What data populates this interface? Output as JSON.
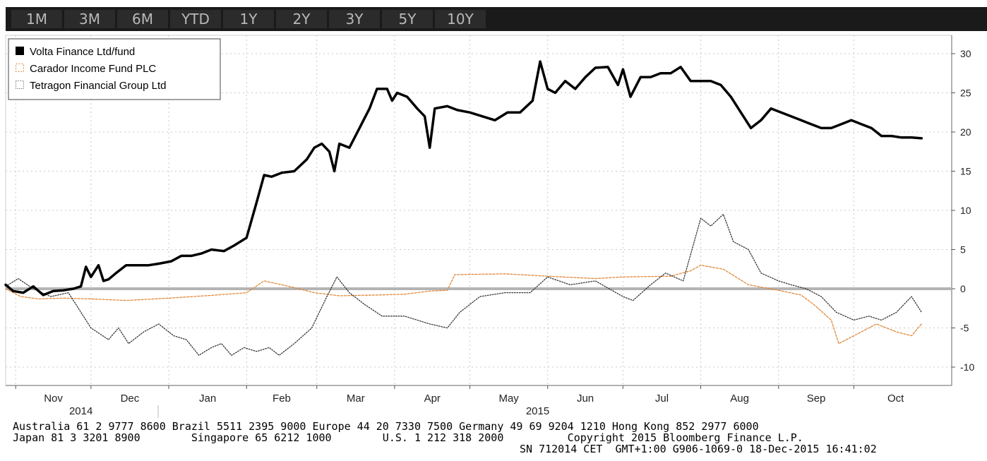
{
  "tabs": [
    "1M",
    "3M",
    "6M",
    "YTD",
    "1Y",
    "2Y",
    "3Y",
    "5Y",
    "10Y"
  ],
  "footer": {
    "line1": "Australia 61 2 9777 8600 Brazil 5511 2395 9000 Europe 44 20 7330 7500 Germany 49 69 9204 1210 Hong Kong 852 2977 6000",
    "line2": "Japan 81 3 3201 8900        Singapore 65 6212 1000        U.S. 1 212 318 2000          Copyright 2015 Bloomberg Finance L.P.",
    "line3": "SN 712014 CET  GMT+1:00 G906-1069-0 18-Dec-2015 16:41:02"
  },
  "chart_data": {
    "type": "line",
    "title": "",
    "xlabel": "",
    "ylabel": "",
    "ylim": [
      -12,
      32
    ],
    "y_ticks": [
      30,
      25,
      20,
      15,
      10,
      5,
      0,
      -5,
      -10
    ],
    "y_tick_labels": [
      "30",
      "25",
      "20",
      "15",
      "10",
      "5",
      "0",
      "-5",
      "-10"
    ],
    "x_range": [
      "2014-10-28",
      "2015-10-31"
    ],
    "months": [
      {
        "date": "2014-11-01",
        "label": "Nov"
      },
      {
        "date": "2014-12-01",
        "label": "Dec"
      },
      {
        "date": "2015-01-01",
        "label": "Jan"
      },
      {
        "date": "2015-02-01",
        "label": "Feb"
      },
      {
        "date": "2015-03-01",
        "label": "Mar"
      },
      {
        "date": "2015-04-01",
        "label": "Apr"
      },
      {
        "date": "2015-05-01",
        "label": "May"
      },
      {
        "date": "2015-06-01",
        "label": "Jun"
      },
      {
        "date": "2015-07-01",
        "label": "Jul"
      },
      {
        "date": "2015-08-01",
        "label": "Aug"
      },
      {
        "date": "2015-09-01",
        "label": "Sep"
      },
      {
        "date": "2015-10-01",
        "label": "Oct"
      }
    ],
    "years": [
      {
        "date": "2014-11-27",
        "label": "2014"
      },
      {
        "date": "2015-05-28",
        "label": "2015"
      }
    ],
    "grid": true,
    "zero_line": true,
    "legend_position": "top-left",
    "series": [
      {
        "name": "Volta Finance Ltd/fund",
        "color": "#000000",
        "style": "solid-thick",
        "points": [
          [
            "2014-10-28",
            0.5
          ],
          [
            "2014-10-31",
            -0.3
          ],
          [
            "2014-11-04",
            -0.5
          ],
          [
            "2014-11-08",
            0.3
          ],
          [
            "2014-11-12",
            -0.8
          ],
          [
            "2014-11-16",
            -0.3
          ],
          [
            "2014-11-20",
            -0.2
          ],
          [
            "2014-11-24",
            0
          ],
          [
            "2014-11-27",
            0.3
          ],
          [
            "2014-11-29",
            2.8
          ],
          [
            "2014-12-01",
            1.5
          ],
          [
            "2014-12-04",
            3.0
          ],
          [
            "2014-12-06",
            1.0
          ],
          [
            "2014-12-08",
            1.2
          ],
          [
            "2014-12-11",
            2.0
          ],
          [
            "2014-12-15",
            3.0
          ],
          [
            "2014-12-20",
            3.0
          ],
          [
            "2014-12-24",
            3.0
          ],
          [
            "2014-12-28",
            3.2
          ],
          [
            "2015-01-02",
            3.5
          ],
          [
            "2015-01-06",
            4.2
          ],
          [
            "2015-01-10",
            4.2
          ],
          [
            "2015-01-14",
            4.5
          ],
          [
            "2015-01-18",
            5.0
          ],
          [
            "2015-01-23",
            4.8
          ],
          [
            "2015-01-27",
            5.5
          ],
          [
            "2015-02-01",
            6.5
          ],
          [
            "2015-02-05",
            11.0
          ],
          [
            "2015-02-08",
            14.5
          ],
          [
            "2015-02-11",
            14.3
          ],
          [
            "2015-02-15",
            14.8
          ],
          [
            "2015-02-20",
            15.0
          ],
          [
            "2015-02-25",
            16.5
          ],
          [
            "2015-02-28",
            18.0
          ],
          [
            "2015-03-03",
            18.5
          ],
          [
            "2015-03-06",
            17.5
          ],
          [
            "2015-03-08",
            15.0
          ],
          [
            "2015-03-10",
            18.5
          ],
          [
            "2015-03-14",
            18.0
          ],
          [
            "2015-03-18",
            20.5
          ],
          [
            "2015-03-22",
            23.0
          ],
          [
            "2015-03-25",
            25.5
          ],
          [
            "2015-03-29",
            25.5
          ],
          [
            "2015-03-31",
            24.0
          ],
          [
            "2015-04-02",
            25.0
          ],
          [
            "2015-04-06",
            24.5
          ],
          [
            "2015-04-10",
            23.0
          ],
          [
            "2015-04-13",
            22.0
          ],
          [
            "2015-04-15",
            18.0
          ],
          [
            "2015-04-17",
            23.0
          ],
          [
            "2015-04-22",
            23.3
          ],
          [
            "2015-04-26",
            22.8
          ],
          [
            "2015-05-01",
            22.5
          ],
          [
            "2015-05-06",
            22.0
          ],
          [
            "2015-05-11",
            21.5
          ],
          [
            "2015-05-16",
            22.5
          ],
          [
            "2015-05-21",
            22.5
          ],
          [
            "2015-05-26",
            24.0
          ],
          [
            "2015-05-29",
            29.0
          ],
          [
            "2015-06-01",
            25.5
          ],
          [
            "2015-06-04",
            25.0
          ],
          [
            "2015-06-08",
            26.5
          ],
          [
            "2015-06-12",
            25.5
          ],
          [
            "2015-06-16",
            27.0
          ],
          [
            "2015-06-20",
            28.2
          ],
          [
            "2015-06-25",
            28.3
          ],
          [
            "2015-06-29",
            26.0
          ],
          [
            "2015-07-01",
            28.0
          ],
          [
            "2015-07-04",
            24.5
          ],
          [
            "2015-07-08",
            27.0
          ],
          [
            "2015-07-12",
            27.0
          ],
          [
            "2015-07-16",
            27.5
          ],
          [
            "2015-07-20",
            27.5
          ],
          [
            "2015-07-24",
            28.3
          ],
          [
            "2015-07-28",
            26.5
          ],
          [
            "2015-08-01",
            26.5
          ],
          [
            "2015-08-05",
            26.5
          ],
          [
            "2015-08-09",
            26.0
          ],
          [
            "2015-08-13",
            24.5
          ],
          [
            "2015-08-17",
            22.5
          ],
          [
            "2015-08-21",
            20.5
          ],
          [
            "2015-08-25",
            21.5
          ],
          [
            "2015-08-29",
            23.0
          ],
          [
            "2015-09-02",
            22.5
          ],
          [
            "2015-09-06",
            22.0
          ],
          [
            "2015-09-10",
            21.5
          ],
          [
            "2015-09-14",
            21.0
          ],
          [
            "2015-09-18",
            20.5
          ],
          [
            "2015-09-22",
            20.5
          ],
          [
            "2015-09-26",
            21.0
          ],
          [
            "2015-09-30",
            21.5
          ],
          [
            "2015-10-04",
            21.0
          ],
          [
            "2015-10-08",
            20.5
          ],
          [
            "2015-10-12",
            19.5
          ],
          [
            "2015-10-16",
            19.5
          ],
          [
            "2015-10-20",
            19.3
          ],
          [
            "2015-10-24",
            19.3
          ],
          [
            "2015-10-28",
            19.2
          ]
        ]
      },
      {
        "name": "Carador Income Fund PLC",
        "color": "#e0883a",
        "style": "dashed",
        "points": [
          [
            "2014-10-28",
            0.0
          ],
          [
            "2014-11-03",
            -1.0
          ],
          [
            "2014-11-10",
            -1.3
          ],
          [
            "2014-11-20",
            -1.2
          ],
          [
            "2014-12-01",
            -1.3
          ],
          [
            "2014-12-15",
            -1.5
          ],
          [
            "2015-01-01",
            -1.2
          ],
          [
            "2015-01-20",
            -0.8
          ],
          [
            "2015-02-01",
            -0.5
          ],
          [
            "2015-02-08",
            1.0
          ],
          [
            "2015-02-18",
            0.3
          ],
          [
            "2015-02-28",
            -0.5
          ],
          [
            "2015-03-10",
            -0.9
          ],
          [
            "2015-03-25",
            -0.8
          ],
          [
            "2015-04-05",
            -0.7
          ],
          [
            "2015-04-15",
            -0.3
          ],
          [
            "2015-04-22",
            -0.2
          ],
          [
            "2015-04-25",
            1.8
          ],
          [
            "2015-05-15",
            1.9
          ],
          [
            "2015-06-01",
            1.6
          ],
          [
            "2015-06-20",
            1.3
          ],
          [
            "2015-07-01",
            1.5
          ],
          [
            "2015-07-20",
            1.6
          ],
          [
            "2015-07-28",
            2.3
          ],
          [
            "2015-08-01",
            3.0
          ],
          [
            "2015-08-10",
            2.5
          ],
          [
            "2015-08-20",
            0.5
          ],
          [
            "2015-09-01",
            -0.2
          ],
          [
            "2015-09-10",
            -0.8
          ],
          [
            "2015-09-15",
            -2.0
          ],
          [
            "2015-09-22",
            -4.0
          ],
          [
            "2015-09-25",
            -7.0
          ],
          [
            "2015-10-01",
            -6.0
          ],
          [
            "2015-10-10",
            -4.5
          ],
          [
            "2015-10-18",
            -5.5
          ],
          [
            "2015-10-24",
            -6.0
          ],
          [
            "2015-10-28",
            -4.5
          ]
        ]
      },
      {
        "name": "Tetragon Financial Group Ltd",
        "color": "#333333",
        "style": "dotted",
        "points": [
          [
            "2014-10-28",
            0.3
          ],
          [
            "2014-11-02",
            1.3
          ],
          [
            "2014-11-08",
            0.0
          ],
          [
            "2014-11-15",
            -1.0
          ],
          [
            "2014-11-22",
            -0.5
          ],
          [
            "2014-12-01",
            -5.0
          ],
          [
            "2014-12-08",
            -6.5
          ],
          [
            "2014-12-12",
            -5.0
          ],
          [
            "2014-12-16",
            -7.0
          ],
          [
            "2014-12-22",
            -5.5
          ],
          [
            "2014-12-28",
            -4.5
          ],
          [
            "2015-01-03",
            -6.0
          ],
          [
            "2015-01-08",
            -6.5
          ],
          [
            "2015-01-13",
            -8.5
          ],
          [
            "2015-01-18",
            -7.5
          ],
          [
            "2015-01-22",
            -7.0
          ],
          [
            "2015-01-26",
            -8.5
          ],
          [
            "2015-01-31",
            -7.5
          ],
          [
            "2015-02-05",
            -8.0
          ],
          [
            "2015-02-10",
            -7.5
          ],
          [
            "2015-02-14",
            -8.5
          ],
          [
            "2015-02-20",
            -7.0
          ],
          [
            "2015-02-27",
            -5.0
          ],
          [
            "2015-03-05",
            -1.0
          ],
          [
            "2015-03-09",
            1.5
          ],
          [
            "2015-03-14",
            -0.5
          ],
          [
            "2015-03-20",
            -2.0
          ],
          [
            "2015-03-27",
            -3.5
          ],
          [
            "2015-04-05",
            -3.5
          ],
          [
            "2015-04-15",
            -4.5
          ],
          [
            "2015-04-22",
            -5.0
          ],
          [
            "2015-04-27",
            -3.0
          ],
          [
            "2015-05-05",
            -1.0
          ],
          [
            "2015-05-15",
            -0.5
          ],
          [
            "2015-05-25",
            -0.5
          ],
          [
            "2015-06-01",
            1.5
          ],
          [
            "2015-06-10",
            0.5
          ],
          [
            "2015-06-20",
            1.0
          ],
          [
            "2015-07-01",
            -1.0
          ],
          [
            "2015-07-05",
            -1.5
          ],
          [
            "2015-07-12",
            0.5
          ],
          [
            "2015-07-18",
            2.0
          ],
          [
            "2015-07-25",
            1.0
          ],
          [
            "2015-08-01",
            9.0
          ],
          [
            "2015-08-05",
            8.0
          ],
          [
            "2015-08-10",
            9.5
          ],
          [
            "2015-08-14",
            6.0
          ],
          [
            "2015-08-20",
            5.0
          ],
          [
            "2015-08-25",
            2.0
          ],
          [
            "2015-09-01",
            1.0
          ],
          [
            "2015-09-06",
            0.5
          ],
          [
            "2015-09-12",
            0.0
          ],
          [
            "2015-09-18",
            -1.0
          ],
          [
            "2015-09-24",
            -3.0
          ],
          [
            "2015-10-01",
            -4.0
          ],
          [
            "2015-10-07",
            -3.5
          ],
          [
            "2015-10-12",
            -4.0
          ],
          [
            "2015-10-18",
            -3.0
          ],
          [
            "2015-10-24",
            -1.0
          ],
          [
            "2015-10-28",
            -3.0
          ]
        ]
      }
    ]
  }
}
